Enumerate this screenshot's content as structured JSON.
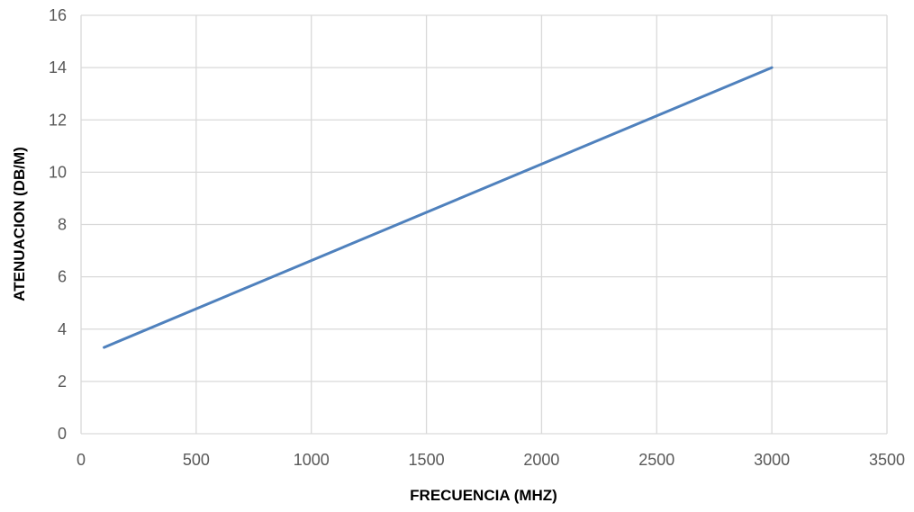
{
  "chart_data": {
    "type": "line",
    "title": "",
    "xlabel": "FRECUENCIA (MHZ)",
    "ylabel": "ATENUACION (DB/M)",
    "xlim": [
      0,
      3500
    ],
    "ylim": [
      0,
      16
    ],
    "xticks": [
      0,
      500,
      1000,
      1500,
      2000,
      2500,
      3000,
      3500
    ],
    "yticks": [
      0,
      2,
      4,
      6,
      8,
      10,
      12,
      14,
      16
    ],
    "grid": true,
    "legend": "none",
    "series": [
      {
        "color": "#4f81bd",
        "x": [
          100,
          3000
        ],
        "y": [
          3.3,
          14
        ]
      }
    ]
  }
}
